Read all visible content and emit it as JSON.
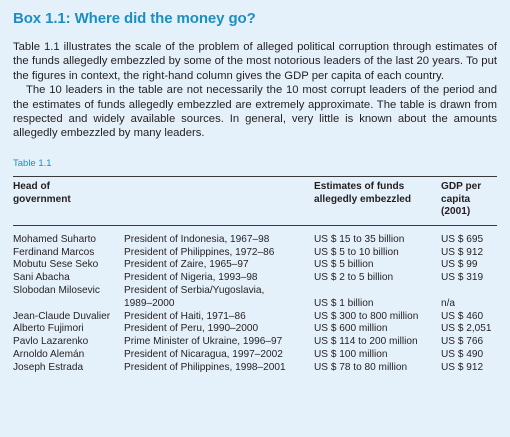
{
  "box": {
    "title": "Box 1.1: Where did the money go?",
    "paragraph1": "Table 1.1 illustrates the scale of the problem of alleged political corruption through estimates of the funds allegedly embezzled by some of the most notorious leaders of the last 20 years. To put the figures in context, the right-hand column gives the GDP per capita of each country.",
    "paragraph2": "The 10 leaders in the table are not necessarily the 10 most corrupt leaders of the period and the estimates of funds allegedly embezzled are extremely approximate. The table is drawn from respected and widely available sources. In general, very little is known about the amounts allegedly embezzled by many leaders."
  },
  "table": {
    "label": "Table 1.1",
    "headers": {
      "head_line1": "Head of",
      "head_line2": "government",
      "funds_line1": "Estimates of funds",
      "funds_line2": "allegedly embezzled",
      "gdp_line1": "GDP per",
      "gdp_line2": "capita",
      "gdp_line3": "(2001)"
    },
    "rows": [
      {
        "name": "Mohamed Suharto",
        "position": "President of Indonesia, 1967–98",
        "funds": "US $ 15 to 35 billion",
        "gdp": "US $ 695"
      },
      {
        "name": "Ferdinand Marcos",
        "position": "President of Philippines, 1972–86",
        "funds": "US $ 5 to 10 billion",
        "gdp": "US $ 912"
      },
      {
        "name": "Mobutu Sese Seko",
        "position": "President of Zaire, 1965–97",
        "funds": "US $ 5 billion",
        "gdp": "US $ 99"
      },
      {
        "name": "Sani Abacha",
        "position": "President of Nigeria, 1993–98",
        "funds": "US $ 2 to 5 billion",
        "gdp": "US $ 319"
      },
      {
        "name": "Slobodan Milosevic",
        "position": "President of Serbia/Yugoslavia,",
        "position2": "1989–2000",
        "funds": "US $ 1 billion",
        "gdp": "n/a"
      },
      {
        "name": "Jean-Claude Duvalier",
        "position": "President of Haiti, 1971–86",
        "funds": "US $ 300 to 800 million",
        "gdp": "US $ 460"
      },
      {
        "name": "Alberto Fujimori",
        "position": "President of Peru, 1990–2000",
        "funds": "US $ 600 million",
        "gdp": "US $ 2,051"
      },
      {
        "name": "Pavlo Lazarenko",
        "position": "Prime Minister of Ukraine, 1996–97",
        "funds": "US $ 114 to 200 million",
        "gdp": "US $ 766"
      },
      {
        "name": "Arnoldo Alemán",
        "position": "President of Nicaragua, 1997–2002",
        "funds": "US $ 100 million",
        "gdp": "US $ 490"
      },
      {
        "name": "Joseph Estrada",
        "position": "President of Philippines, 1998–2001",
        "funds": "US $ 78 to 80 million",
        "gdp": "US $ 912"
      }
    ]
  },
  "colors": {
    "background": "#e5f1fa",
    "accent": "#1b8fc2",
    "text": "#231f20"
  }
}
